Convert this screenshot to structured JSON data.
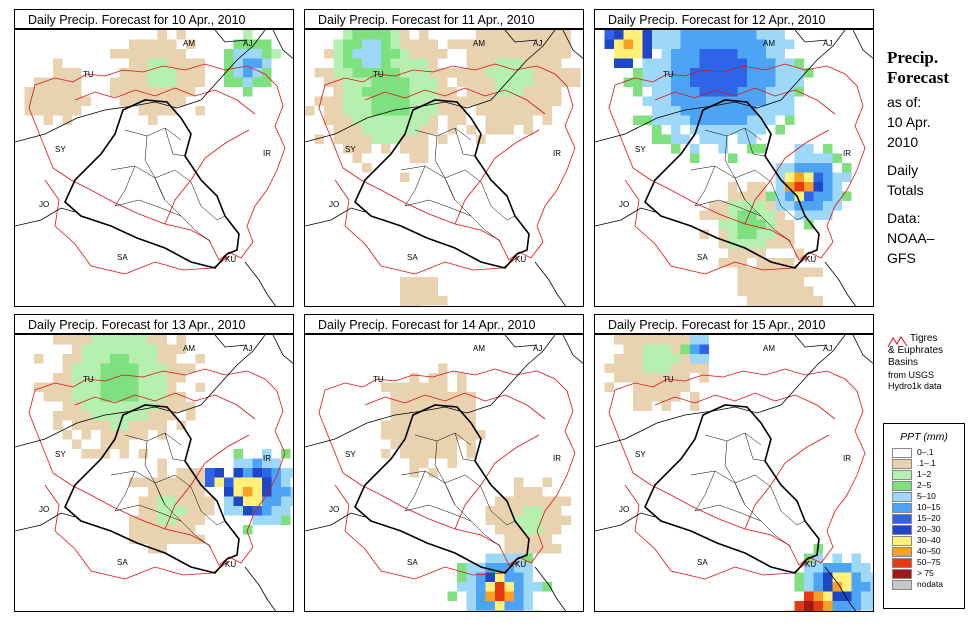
{
  "panels": [
    {
      "title": "Daily Precip. Forecast for  10 Apr., 2010",
      "day": 0
    },
    {
      "title": "Daily Precip. Forecast for  11 Apr., 2010",
      "day": 1
    },
    {
      "title": "Daily Precip. Forecast for  12 Apr., 2010",
      "day": 2
    },
    {
      "title": "Daily Precip. Forecast for  13 Apr., 2010",
      "day": 3
    },
    {
      "title": "Daily Precip. Forecast for  14 Apr., 2010",
      "day": 4
    },
    {
      "title": "Daily Precip. Forecast for  15 Apr., 2010",
      "day": 5
    }
  ],
  "map_labels": [
    "AM",
    "AJ",
    "TU",
    "SY",
    "IR",
    "JO",
    "SA",
    "KU"
  ],
  "side": {
    "heading_line1": "Precip.",
    "heading_line2": "Forecast",
    "as_of": "as of:",
    "date_line1": "10 Apr.",
    "date_line2": "2010",
    "daily1": "Daily",
    "daily2": "Totals",
    "data1": "Data:",
    "data2": "NOAA–",
    "data3": "GFS"
  },
  "basin_note": {
    "line1": "Tigres",
    "line2": "& Euphrates",
    "line3": "Basins",
    "line4": "from USGS",
    "line5": "Hydro1k data",
    "color": "#e01010"
  },
  "legend": {
    "title": "PPT (mm)",
    "items": [
      {
        "label": "0–.1",
        "color": "#ffffff"
      },
      {
        "label": ".1–.1",
        "color": "#e8d2b0"
      },
      {
        "label": "1–2",
        "color": "#b6f0b0"
      },
      {
        "label": "2–5",
        "color": "#7ee07e"
      },
      {
        "label": "5–10",
        "color": "#9ed8f8"
      },
      {
        "label": "10–15",
        "color": "#4ea4f4"
      },
      {
        "label": "15–20",
        "color": "#2d64e8"
      },
      {
        "label": "20–30",
        "color": "#1e46c8"
      },
      {
        "label": "30–40",
        "color": "#fff07a"
      },
      {
        "label": "40–50",
        "color": "#fca024"
      },
      {
        "label": "50–75",
        "color": "#e83a10"
      },
      {
        "label": "> 75",
        "color": "#a01818"
      },
      {
        "label": "nodata",
        "color": "#c8c8c8"
      }
    ]
  }
}
